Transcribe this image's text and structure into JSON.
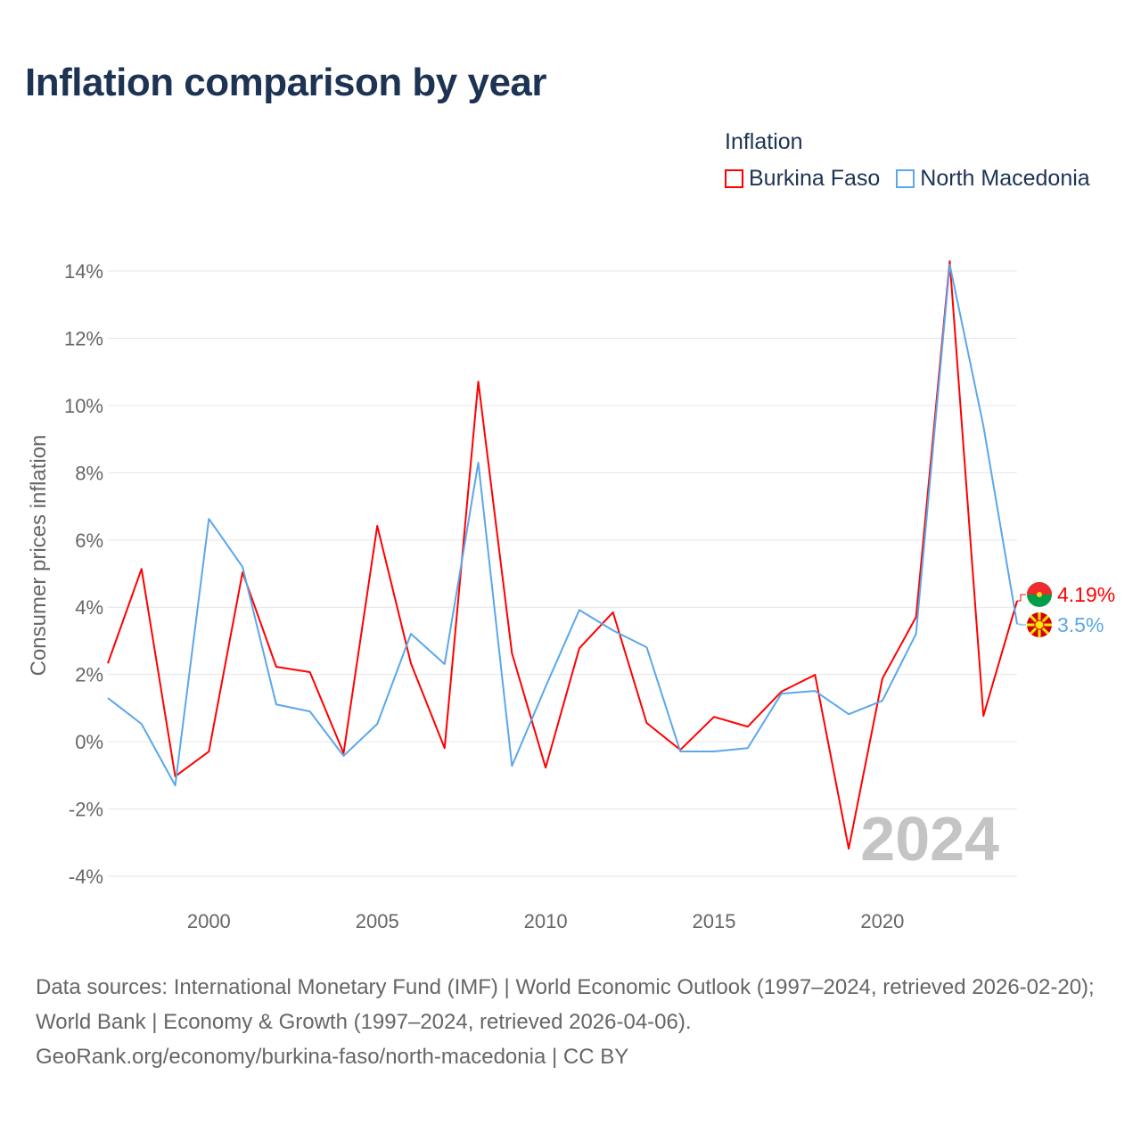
{
  "title": "Inflation comparison by year",
  "legend": {
    "title": "Inflation",
    "items": [
      {
        "name": "Burkina Faso",
        "color": "#ff0000"
      },
      {
        "name": "North Macedonia",
        "color": "#5ba7ea"
      }
    ]
  },
  "footer": {
    "sources": "Data sources: International Monetary Fund (IMF) | World Economic Outlook (1997–2024, retrieved 2026-02-20); World Bank | Economy & Growth (1997–2024, retrieved 2026-04-06).",
    "link": "GeoRank.org/economy/burkina-faso/north-macedonia | CC BY"
  },
  "chart_data": {
    "type": "line",
    "title": "Inflation comparison by year",
    "ylabel": "Consumer prices inflation",
    "xlabel": "",
    "year_watermark": "2024",
    "x": [
      1997,
      1998,
      1999,
      2000,
      2001,
      2002,
      2003,
      2004,
      2005,
      2006,
      2007,
      2008,
      2009,
      2010,
      2011,
      2012,
      2013,
      2014,
      2015,
      2016,
      2017,
      2018,
      2019,
      2020,
      2021,
      2022,
      2023,
      2024
    ],
    "xlim": [
      1997,
      2024
    ],
    "ylim": [
      -4,
      14
    ],
    "xticks": [
      2000,
      2005,
      2010,
      2015,
      2020
    ],
    "yticks": [
      -4,
      -2,
      0,
      2,
      4,
      6,
      8,
      10,
      12,
      14
    ],
    "ytick_labels": [
      "-4%",
      "-2%",
      "0%",
      "2%",
      "4%",
      "6%",
      "8%",
      "10%",
      "12%",
      "14%"
    ],
    "grid": true,
    "legend_position": "top-right",
    "series": [
      {
        "name": "Burkina Faso",
        "color": "#ff0000",
        "end_label": "4.19%",
        "values": [
          2.33,
          5.14,
          -1.03,
          -0.29,
          5.04,
          2.23,
          2.07,
          -0.34,
          6.42,
          2.33,
          -0.19,
          10.71,
          2.63,
          -0.77,
          2.78,
          3.85,
          0.56,
          -0.24,
          0.74,
          0.45,
          1.49,
          1.99,
          -3.18,
          1.88,
          3.71,
          14.29,
          0.77,
          4.19
        ]
      },
      {
        "name": "North Macedonia",
        "color": "#5ba7ea",
        "end_label": "3.5%",
        "values": [
          1.3,
          0.53,
          -1.3,
          6.63,
          5.2,
          1.11,
          0.9,
          -0.42,
          0.53,
          3.21,
          2.31,
          8.3,
          -0.72,
          1.64,
          3.92,
          3.31,
          2.81,
          -0.29,
          -0.29,
          -0.19,
          1.43,
          1.51,
          0.82,
          1.22,
          3.21,
          14.19,
          9.39,
          3.5
        ]
      }
    ]
  }
}
